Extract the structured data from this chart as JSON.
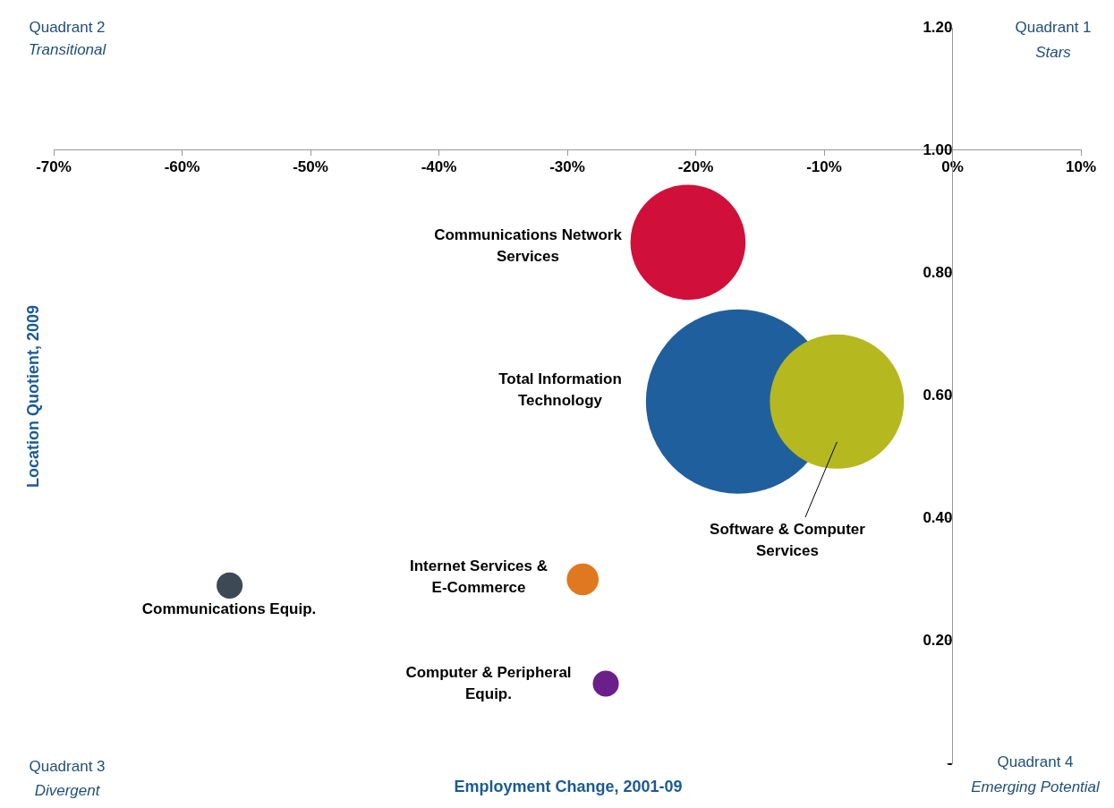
{
  "chart_data": {
    "type": "bubble",
    "xlabel": "Employment Change, 2001-09",
    "ylabel": "Location Quotient, 2009",
    "series": [
      {
        "name": "Total Information Technology",
        "color": "#1f5f9e",
        "x": [
          -16.7
        ],
        "values": [
          0.59
        ],
        "sizes": [
          1
        ]
      },
      {
        "name": "Software & Computer Services",
        "color": "#b5b81e",
        "x": [
          -9.0
        ],
        "values": [
          0.59
        ],
        "sizes": [
          0.53
        ]
      },
      {
        "name": "Communications Network Services",
        "color": "#d0103a",
        "x": [
          -20.6
        ],
        "values": [
          0.85
        ],
        "sizes": [
          0.39
        ]
      },
      {
        "name": "Internet Services & E-Commerce",
        "color": "#e07820",
        "x": [
          -28.8
        ],
        "values": [
          0.3
        ],
        "sizes": [
          0.03
        ]
      },
      {
        "name": "Communications Equip.",
        "color": "#3d4a55",
        "x": [
          -56.3
        ],
        "values": [
          0.29
        ],
        "sizes": [
          0.02
        ]
      },
      {
        "name": "Computer & Peripheral Equip.",
        "color": "#6a1f8a",
        "x": [
          -27.0
        ],
        "values": [
          0.13
        ],
        "sizes": [
          0.02
        ]
      }
    ],
    "xlim": [
      -70,
      10
    ],
    "xticks": [
      {
        "value": -70,
        "label": "-70%"
      },
      {
        "value": -60,
        "label": "-60%"
      },
      {
        "value": -50,
        "label": "-50%"
      },
      {
        "value": -40,
        "label": "-40%"
      },
      {
        "value": -30,
        "label": "-30%"
      },
      {
        "value": -20,
        "label": "-20%"
      },
      {
        "value": -10,
        "label": "-10%"
      },
      {
        "value": 0,
        "label": "0%"
      },
      {
        "value": 10,
        "label": "10%"
      }
    ],
    "ylim": [
      0,
      1.2
    ],
    "yticks": [
      {
        "value": 0,
        "label": "-"
      },
      {
        "value": 0.2,
        "label": "0.20"
      },
      {
        "value": 0.4,
        "label": "0.40"
      },
      {
        "value": 0.6,
        "label": "0.60"
      },
      {
        "value": 0.8,
        "label": "0.80"
      },
      {
        "value": 1,
        "label": "1.00"
      },
      {
        "value": 1.2,
        "label": "1.20"
      }
    ],
    "grid": false,
    "legend": false,
    "annotations": [
      "Quadrant 2",
      "Transitional",
      "Quadrant 1",
      "Stars",
      "Quadrant 3",
      "Divergent",
      "Quadrant 4",
      "Emerging Potential"
    ]
  }
}
